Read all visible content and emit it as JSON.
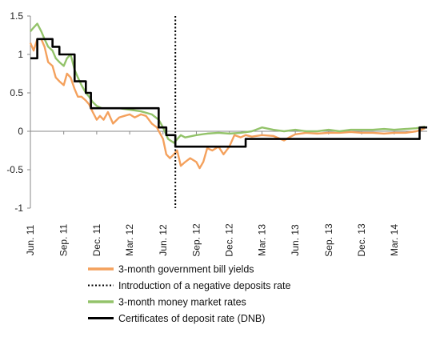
{
  "chart_data": {
    "type": "line",
    "title": "",
    "xlabel": "",
    "ylabel": "",
    "ylim": [
      -1,
      1.5
    ],
    "yticks": [
      "1.5",
      "1",
      "0.5",
      "0",
      "-0.5",
      "-1"
    ],
    "x_range": [
      "2011-06-01",
      "2014-05-31"
    ],
    "xticks": [
      {
        "label": "Jun. 11",
        "date": "2011-06-01"
      },
      {
        "label": "Sep. 11",
        "date": "2011-09-01"
      },
      {
        "label": "Dec. 11",
        "date": "2011-12-01"
      },
      {
        "label": "Mar. 12",
        "date": "2012-03-01"
      },
      {
        "label": "Jun. 12",
        "date": "2012-06-01"
      },
      {
        "label": "Sep. 12",
        "date": "2012-09-01"
      },
      {
        "label": "Dec. 12",
        "date": "2012-12-01"
      },
      {
        "label": "Mar. 13",
        "date": "2013-03-01"
      },
      {
        "label": "Jun. 13",
        "date": "2013-06-01"
      },
      {
        "label": "Sep. 13",
        "date": "2013-09-01"
      },
      {
        "label": "Dec. 13",
        "date": "2013-12-01"
      },
      {
        "label": "Mar. 14",
        "date": "2014-03-01"
      }
    ],
    "grid": false,
    "legend_placement": "bottom",
    "series": [
      {
        "name": "3-month government bill yields",
        "color": "#F4A15D",
        "points": [
          [
            "2011-06-01",
            1.15
          ],
          [
            "2011-06-10",
            1.05
          ],
          [
            "2011-06-20",
            1.2
          ],
          [
            "2011-07-01",
            1.2
          ],
          [
            "2011-07-10",
            1.1
          ],
          [
            "2011-07-20",
            0.9
          ],
          [
            "2011-08-01",
            0.85
          ],
          [
            "2011-08-10",
            0.7
          ],
          [
            "2011-08-20",
            0.65
          ],
          [
            "2011-09-01",
            0.6
          ],
          [
            "2011-09-10",
            0.75
          ],
          [
            "2011-09-20",
            0.7
          ],
          [
            "2011-10-01",
            0.55
          ],
          [
            "2011-10-10",
            0.45
          ],
          [
            "2011-10-20",
            0.45
          ],
          [
            "2011-11-01",
            0.4
          ],
          [
            "2011-11-10",
            0.35
          ],
          [
            "2011-11-20",
            0.25
          ],
          [
            "2011-12-01",
            0.15
          ],
          [
            "2011-12-10",
            0.2
          ],
          [
            "2011-12-20",
            0.15
          ],
          [
            "2012-01-01",
            0.25
          ],
          [
            "2012-01-15",
            0.1
          ],
          [
            "2012-02-01",
            0.18
          ],
          [
            "2012-02-15",
            0.2
          ],
          [
            "2012-03-01",
            0.22
          ],
          [
            "2012-03-15",
            0.18
          ],
          [
            "2012-04-01",
            0.22
          ],
          [
            "2012-04-15",
            0.2
          ],
          [
            "2012-05-01",
            0.1
          ],
          [
            "2012-05-15",
            0.05
          ],
          [
            "2012-06-01",
            -0.1
          ],
          [
            "2012-06-10",
            -0.3
          ],
          [
            "2012-06-20",
            -0.35
          ],
          [
            "2012-07-01",
            -0.3
          ],
          [
            "2012-07-10",
            -0.25
          ],
          [
            "2012-07-20",
            -0.45
          ],
          [
            "2012-08-01",
            -0.4
          ],
          [
            "2012-08-15",
            -0.35
          ],
          [
            "2012-09-01",
            -0.4
          ],
          [
            "2012-09-10",
            -0.48
          ],
          [
            "2012-09-20",
            -0.4
          ],
          [
            "2012-10-01",
            -0.22
          ],
          [
            "2012-10-15",
            -0.25
          ],
          [
            "2012-11-01",
            -0.2
          ],
          [
            "2012-11-15",
            -0.3
          ],
          [
            "2012-12-01",
            -0.2
          ],
          [
            "2012-12-15",
            -0.05
          ],
          [
            "2013-01-01",
            -0.08
          ],
          [
            "2013-01-15",
            -0.05
          ],
          [
            "2013-02-01",
            -0.07
          ],
          [
            "2013-03-01",
            -0.05
          ],
          [
            "2013-04-01",
            -0.06
          ],
          [
            "2013-05-01",
            -0.12
          ],
          [
            "2013-05-15",
            -0.08
          ],
          [
            "2013-06-01",
            -0.04
          ],
          [
            "2013-07-01",
            -0.02
          ],
          [
            "2013-08-01",
            -0.03
          ],
          [
            "2013-09-01",
            -0.02
          ],
          [
            "2013-10-01",
            -0.02
          ],
          [
            "2013-11-01",
            -0.01
          ],
          [
            "2013-12-01",
            -0.02
          ],
          [
            "2014-01-01",
            -0.02
          ],
          [
            "2014-02-01",
            -0.03
          ],
          [
            "2014-03-01",
            -0.02
          ],
          [
            "2014-04-01",
            -0.02
          ],
          [
            "2014-05-01",
            0.0
          ],
          [
            "2014-05-15",
            0.02
          ],
          [
            "2014-05-25",
            0.04
          ]
        ]
      },
      {
        "name": "Introduction of a negative deposits rate",
        "color": "#000000",
        "date": "2012-07-05"
      },
      {
        "name": "3-month money market rates",
        "color": "#93C36A",
        "points": [
          [
            "2011-06-01",
            1.3
          ],
          [
            "2011-06-10",
            1.35
          ],
          [
            "2011-06-20",
            1.4
          ],
          [
            "2011-07-01",
            1.3
          ],
          [
            "2011-07-10",
            1.2
          ],
          [
            "2011-07-20",
            1.1
          ],
          [
            "2011-08-01",
            1.05
          ],
          [
            "2011-08-10",
            0.95
          ],
          [
            "2011-08-20",
            0.9
          ],
          [
            "2011-09-01",
            0.85
          ],
          [
            "2011-09-10",
            0.95
          ],
          [
            "2011-09-20",
            1.0
          ],
          [
            "2011-10-01",
            0.8
          ],
          [
            "2011-10-10",
            0.7
          ],
          [
            "2011-10-20",
            0.6
          ],
          [
            "2011-11-01",
            0.5
          ],
          [
            "2011-11-10",
            0.45
          ],
          [
            "2011-11-20",
            0.38
          ],
          [
            "2011-12-01",
            0.33
          ],
          [
            "2011-12-15",
            0.3
          ],
          [
            "2012-01-01",
            0.3
          ],
          [
            "2012-02-01",
            0.3
          ],
          [
            "2012-03-01",
            0.28
          ],
          [
            "2012-04-01",
            0.26
          ],
          [
            "2012-05-01",
            0.22
          ],
          [
            "2012-05-20",
            0.15
          ],
          [
            "2012-06-01",
            0.05
          ],
          [
            "2012-06-15",
            -0.1
          ],
          [
            "2012-07-01",
            -0.15
          ],
          [
            "2012-07-20",
            -0.05
          ],
          [
            "2012-08-01",
            -0.08
          ],
          [
            "2012-09-01",
            -0.05
          ],
          [
            "2012-10-01",
            -0.03
          ],
          [
            "2012-11-01",
            -0.02
          ],
          [
            "2012-12-01",
            -0.03
          ],
          [
            "2013-01-01",
            -0.02
          ],
          [
            "2013-02-01",
            0.0
          ],
          [
            "2013-03-01",
            0.05
          ],
          [
            "2013-04-01",
            0.02
          ],
          [
            "2013-05-01",
            0.0
          ],
          [
            "2013-06-01",
            0.02
          ],
          [
            "2013-07-01",
            0.0
          ],
          [
            "2013-08-01",
            0.0
          ],
          [
            "2013-09-01",
            0.02
          ],
          [
            "2013-10-01",
            0.0
          ],
          [
            "2013-11-01",
            0.02
          ],
          [
            "2013-12-01",
            0.02
          ],
          [
            "2014-01-01",
            0.02
          ],
          [
            "2014-02-01",
            0.03
          ],
          [
            "2014-03-01",
            0.02
          ],
          [
            "2014-04-01",
            0.03
          ],
          [
            "2014-05-01",
            0.04
          ],
          [
            "2014-05-25",
            0.06
          ]
        ]
      },
      {
        "name": "Certificates of deposit rate (DNB)",
        "color": "#000000",
        "step": true,
        "points": [
          [
            "2011-06-01",
            0.95
          ],
          [
            "2011-06-20",
            1.2
          ],
          [
            "2011-08-01",
            1.1
          ],
          [
            "2011-08-20",
            1.0
          ],
          [
            "2011-10-01",
            0.65
          ],
          [
            "2011-11-01",
            0.5
          ],
          [
            "2011-11-15",
            0.3
          ],
          [
            "2012-05-20",
            0.05
          ],
          [
            "2012-06-10",
            -0.05
          ],
          [
            "2012-07-05",
            -0.2
          ],
          [
            "2013-01-15",
            -0.1
          ],
          [
            "2014-05-10",
            0.05
          ],
          [
            "2014-05-31",
            0.05
          ]
        ]
      }
    ]
  }
}
